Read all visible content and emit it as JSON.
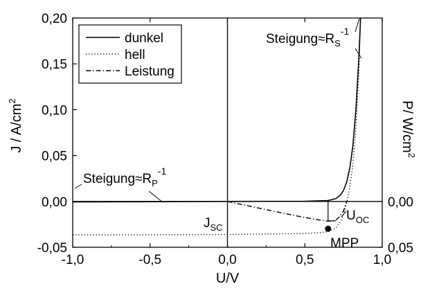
{
  "chart_data": {
    "type": "line",
    "xlabel": "U/V",
    "ylabel_left": "J / A/cm",
    "ylabel_left_sup": "2",
    "ylabel_right": "P/ W/cm",
    "ylabel_right_sup": "2",
    "xlim": [
      -1.0,
      1.0
    ],
    "ylim": [
      -0.05,
      0.2
    ],
    "x_ticks": [
      -1.0,
      -0.5,
      0.0,
      0.5,
      1.0
    ],
    "x_tick_labels": [
      "-1,0",
      "-0,5",
      "0,0",
      "0,5",
      "1,0"
    ],
    "y_ticks": [
      -0.05,
      0.0,
      0.05,
      0.1,
      0.15,
      0.2
    ],
    "y_tick_labels": [
      "-0,05",
      "0,00",
      "0,05",
      "0,10",
      "0,15",
      "0,20"
    ],
    "right_ticks": [
      0.0,
      -0.05
    ],
    "right_tick_labels": [
      "0,00",
      "0,05"
    ],
    "grid": false,
    "legend_position": "top-left",
    "series": [
      {
        "name": "dunkel",
        "style": "solid",
        "x": [
          -1.0,
          -0.5,
          0.0,
          0.5,
          0.65,
          0.7,
          0.73,
          0.75,
          0.77,
          0.79,
          0.81,
          0.83,
          0.85,
          0.86
        ],
        "y": [
          -0.0005,
          -0.0003,
          0.0,
          0.0002,
          0.001,
          0.003,
          0.007,
          0.012,
          0.021,
          0.036,
          0.06,
          0.1,
          0.16,
          0.2
        ]
      },
      {
        "name": "hell",
        "style": "dotted",
        "x": [
          -1.0,
          -0.5,
          0.0,
          0.5,
          0.6,
          0.65,
          0.7,
          0.73,
          0.75,
          0.77,
          0.79,
          0.81,
          0.83,
          0.85,
          0.86
        ],
        "y": [
          -0.0365,
          -0.0363,
          -0.036,
          -0.035,
          -0.034,
          -0.033,
          -0.029,
          -0.022,
          -0.014,
          -0.002,
          0.015,
          0.04,
          0.08,
          0.145,
          0.2
        ]
      },
      {
        "name": "Leistung",
        "style": "dashdot",
        "x": [
          0.0,
          0.1,
          0.2,
          0.3,
          0.4,
          0.5,
          0.6,
          0.65,
          0.68,
          0.7,
          0.72,
          0.75,
          0.77
        ],
        "y": [
          0.0,
          -0.0036,
          -0.0072,
          -0.0107,
          -0.0142,
          -0.0175,
          -0.0204,
          -0.0215,
          -0.0212,
          -0.0203,
          -0.0175,
          -0.0105,
          0.0
        ]
      }
    ],
    "annotations": {
      "rs_label": "Steigung≈R",
      "rs_sub": "S",
      "rs_sup": "-1",
      "rp_label": "Steigung≈R",
      "rp_sub": "P",
      "rp_sup": "-1",
      "jsc": "J",
      "jsc_sub": "SC",
      "uoc": "U",
      "uoc_sub": "OC",
      "mpp": "MPP"
    },
    "mpp_point": {
      "x": 0.65,
      "y": -0.0298
    }
  }
}
